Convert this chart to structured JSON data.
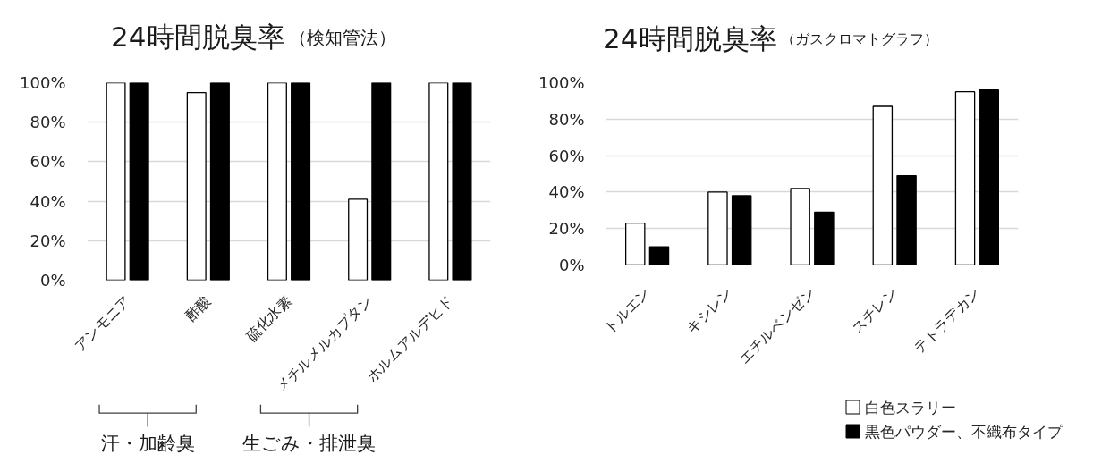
{
  "chart_data": [
    {
      "type": "bar",
      "title": "24時間脱臭率",
      "subtitle": "（検知管法）",
      "categories": [
        "アンモニア",
        "酢酸",
        "硫化水素",
        "メチルメルカプタン",
        "ホルムアルデヒド"
      ],
      "series": [
        {
          "color": "#ffffff",
          "values": [
            100,
            95,
            100,
            41,
            100
          ]
        },
        {
          "color": "#000000",
          "values": [
            100,
            100,
            100,
            100,
            100
          ]
        }
      ],
      "ylim": [
        0,
        100
      ],
      "yticks": [
        {
          "value": 0,
          "label": "0%"
        },
        {
          "value": 20,
          "label": "20%"
        },
        {
          "value": 40,
          "label": "40%"
        },
        {
          "value": 60,
          "label": "60%"
        },
        {
          "value": 80,
          "label": "80%"
        },
        {
          "value": 100,
          "label": "100%"
        }
      ],
      "grid": "y",
      "annotations": [
        "汗・加齢臭",
        "生ごみ・排泄臭"
      ]
    },
    {
      "type": "bar",
      "title": "24時間脱臭率",
      "subtitle": "（ガスクロマトグラフ）",
      "categories": [
        "トルエン",
        "キシレン",
        "エチルベンゼン",
        "スチレン",
        "テトラデカン"
      ],
      "series": [
        {
          "name": "白色スラリー",
          "color": "#ffffff",
          "values": [
            23,
            40,
            42,
            87,
            95
          ]
        },
        {
          "name": "黒色パウダー、不織布タイプ",
          "color": "#000000",
          "values": [
            10,
            38,
            29,
            49,
            96
          ]
        }
      ],
      "ylim": [
        0,
        100
      ],
      "yticks": [
        {
          "value": 0,
          "label": "0%"
        },
        {
          "value": 20,
          "label": "20%"
        },
        {
          "value": 40,
          "label": "40%"
        },
        {
          "value": 60,
          "label": "60%"
        },
        {
          "value": 80,
          "label": "80%"
        },
        {
          "value": 100,
          "label": "100%"
        }
      ],
      "grid": "y",
      "legend": "bottom right"
    }
  ]
}
